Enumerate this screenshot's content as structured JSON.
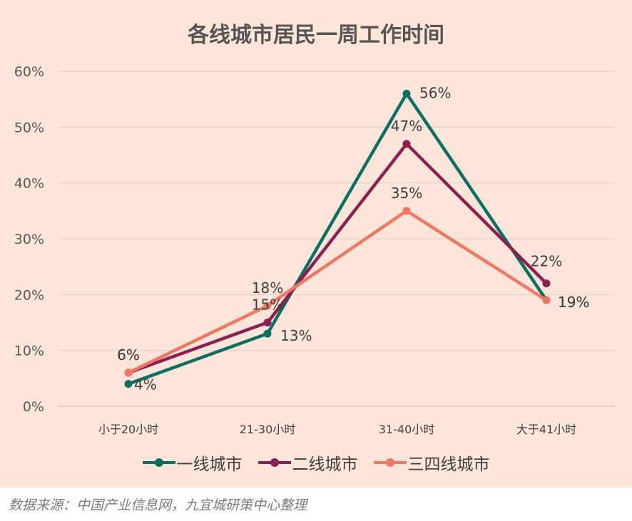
{
  "chart_data": {
    "type": "line",
    "title": "各线城市居民一周工作时间",
    "categories": [
      "小于20小时",
      "21-30小时",
      "31-40小时",
      "大于41小时"
    ],
    "y_ticks": [
      "0%",
      "10%",
      "20%",
      "30%",
      "40%",
      "50%",
      "60%"
    ],
    "ylim": [
      0,
      60
    ],
    "grid": true,
    "legend_position": "bottom",
    "series": [
      {
        "name": "一线城市",
        "color": "#0d6e62",
        "values": [
          4,
          13,
          56,
          19
        ],
        "labels": [
          "4%",
          "13%",
          "56%",
          "19%"
        ]
      },
      {
        "name": "二线城市",
        "color": "#8b1f4f",
        "values": [
          6,
          15,
          47,
          22
        ],
        "labels": [
          "6%",
          "15%",
          "47%",
          "22%"
        ]
      },
      {
        "name": "三四线城市",
        "color": "#f07862",
        "values": [
          6,
          18,
          35,
          19
        ],
        "labels": [
          "6%",
          "18%",
          "35%",
          "19%"
        ]
      }
    ]
  },
  "footer": {
    "source": "数据来源：中国产业信息网，九宜城研策中心整理"
  }
}
